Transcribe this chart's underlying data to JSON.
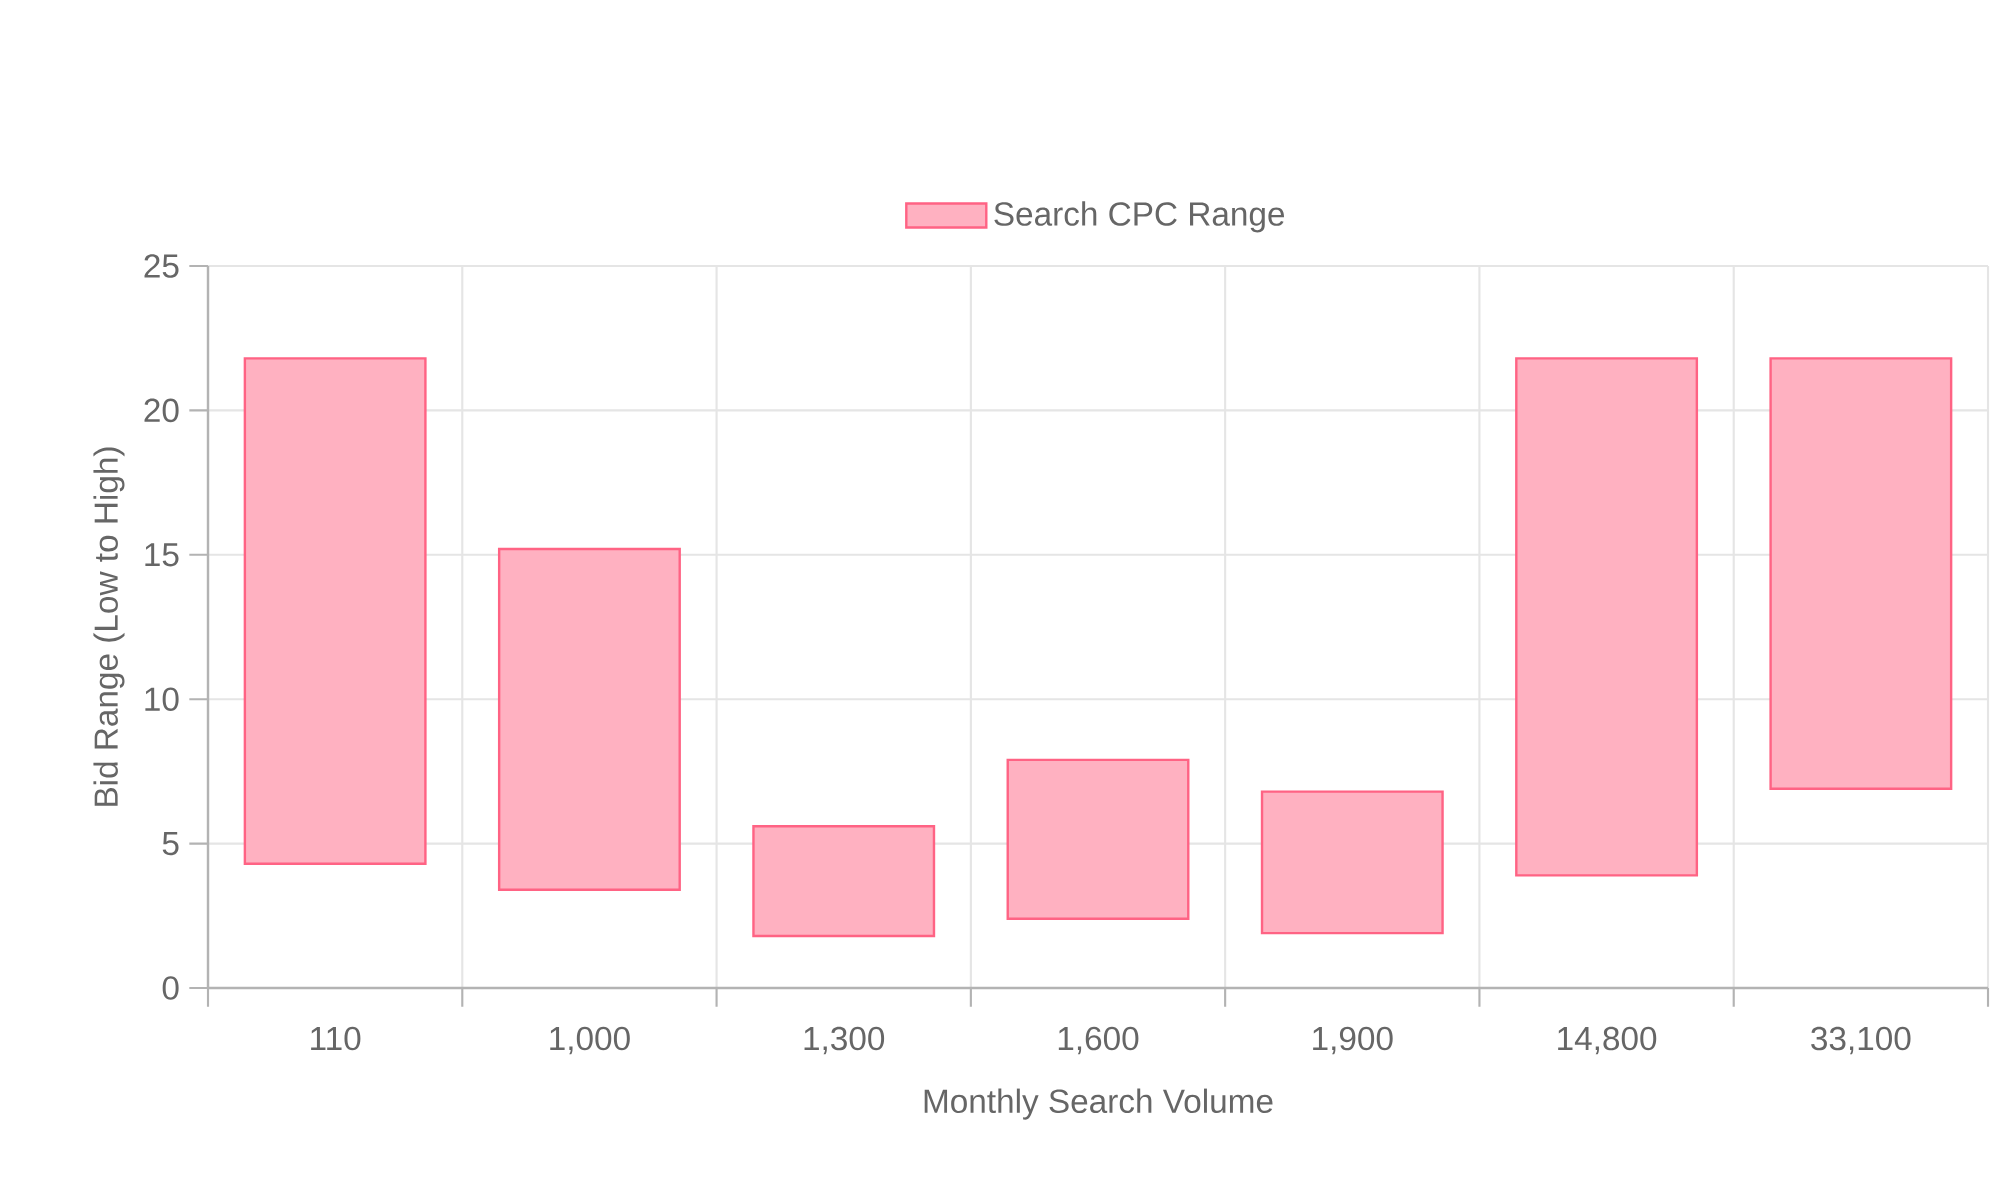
{
  "chart_data": {
    "type": "bar",
    "xlabel": "Monthly Search Volume",
    "ylabel": "Bid Range (Low to High)",
    "categories": [
      "110",
      "1,000",
      "1,300",
      "1,600",
      "1,900",
      "14,800",
      "33,100"
    ],
    "series": [
      {
        "name": "Search CPC Range",
        "color": "#ffb1c1",
        "values": [
          17.5,
          11.8,
          3.8,
          5.5,
          4.9,
          17.9,
          14.9
        ],
        "base": [
          4.3,
          3.4,
          1.8,
          2.4,
          1.9,
          3.9,
          6.9
        ]
      }
    ],
    "ylim": [
      0,
      25
    ],
    "yticks": [
      0,
      5,
      10,
      15,
      20,
      25
    ],
    "grid": true,
    "legend": "top"
  }
}
